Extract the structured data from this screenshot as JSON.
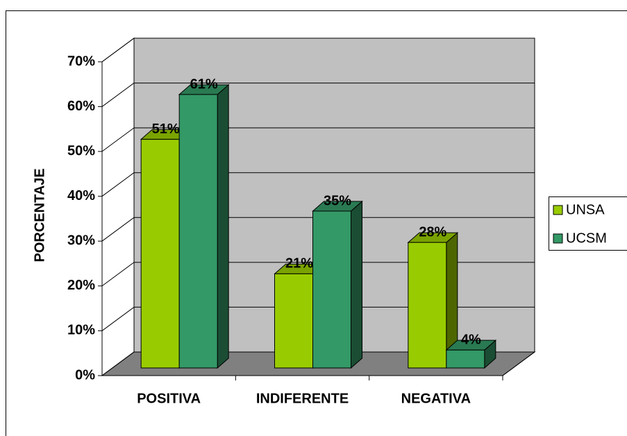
{
  "chart_data": {
    "type": "bar3d",
    "y_axis_label": "PORCENTAJE",
    "categories": [
      "POSITIVA",
      "INDIFERENTE",
      "NEGATIVA"
    ],
    "series": [
      {
        "name": "UNSA",
        "color": "#99cc00",
        "values": [
          51,
          21,
          28
        ],
        "value_labels": [
          "51%",
          "21%",
          "28%"
        ]
      },
      {
        "name": "UCSM",
        "color": "#339966",
        "values": [
          61,
          35,
          4
        ],
        "value_labels": [
          "61%",
          "35%",
          "4%"
        ]
      }
    ],
    "ylim": [
      0,
      70
    ],
    "yticks": [
      {
        "value": 0,
        "label": "0%"
      },
      {
        "value": 10,
        "label": "10%"
      },
      {
        "value": 20,
        "label": "20%"
      },
      {
        "value": 30,
        "label": "30%"
      },
      {
        "value": 40,
        "label": "40%"
      },
      {
        "value": 50,
        "label": "50%"
      },
      {
        "value": 60,
        "label": "60%"
      },
      {
        "value": 70,
        "label": "70%"
      }
    ],
    "grid": true,
    "legend": "right"
  }
}
